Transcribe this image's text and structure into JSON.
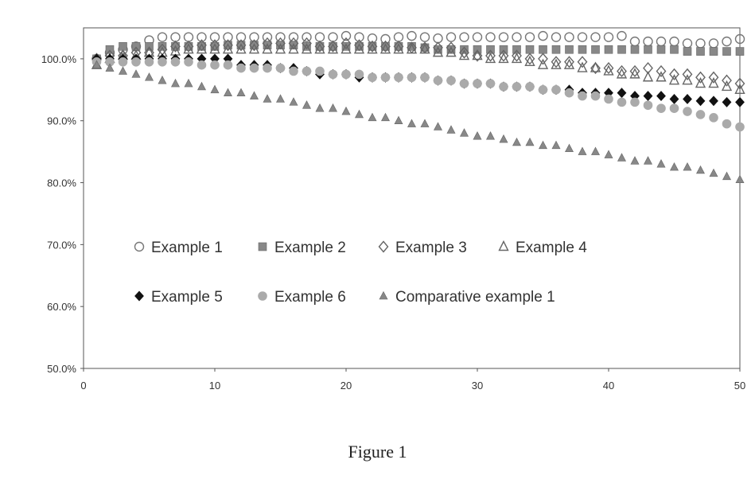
{
  "caption": "Figure 1",
  "chart_data": {
    "type": "scatter",
    "title": "",
    "xlabel": "",
    "ylabel": "",
    "xlim": [
      0,
      50
    ],
    "ylim": [
      0.5,
      1.05
    ],
    "xticks": [
      0,
      10,
      20,
      30,
      40,
      50
    ],
    "xtick_labels": [
      "0",
      "10",
      "20",
      "30",
      "40",
      "50"
    ],
    "yticks": [
      0.5,
      0.6,
      0.7,
      0.8,
      0.9,
      1.0
    ],
    "ytick_labels": [
      "50.0%",
      "60.0%",
      "70.0%",
      "80.0%",
      "90.0%",
      "100.0%"
    ],
    "grid": false,
    "legend_position": "inside-bottom-left",
    "series": [
      {
        "name": "Example 1",
        "marker": "circle-open",
        "color": "#777777",
        "x": [
          1,
          2,
          3,
          4,
          5,
          6,
          7,
          8,
          9,
          10,
          11,
          12,
          13,
          14,
          15,
          16,
          17,
          18,
          19,
          20,
          21,
          22,
          23,
          24,
          25,
          26,
          27,
          28,
          29,
          30,
          31,
          32,
          33,
          34,
          35,
          36,
          37,
          38,
          39,
          40,
          41,
          42,
          43,
          44,
          45,
          46,
          47,
          48,
          49,
          50
        ],
        "y": [
          1.0,
          1.01,
          1.015,
          1.02,
          1.03,
          1.035,
          1.035,
          1.035,
          1.035,
          1.035,
          1.035,
          1.035,
          1.035,
          1.035,
          1.035,
          1.035,
          1.035,
          1.035,
          1.035,
          1.037,
          1.035,
          1.033,
          1.032,
          1.035,
          1.037,
          1.035,
          1.033,
          1.035,
          1.035,
          1.035,
          1.035,
          1.035,
          1.035,
          1.035,
          1.037,
          1.035,
          1.035,
          1.035,
          1.035,
          1.035,
          1.037,
          1.028,
          1.028,
          1.028,
          1.028,
          1.025,
          1.025,
          1.025,
          1.028,
          1.032
        ]
      },
      {
        "name": "Example 2",
        "marker": "square-filled",
        "color": "#888888",
        "x": [
          1,
          2,
          3,
          4,
          5,
          6,
          7,
          8,
          9,
          10,
          11,
          12,
          13,
          14,
          15,
          16,
          17,
          18,
          19,
          20,
          21,
          22,
          23,
          24,
          25,
          26,
          27,
          28,
          29,
          30,
          31,
          32,
          33,
          34,
          35,
          36,
          37,
          38,
          39,
          40,
          41,
          42,
          43,
          44,
          45,
          46,
          47,
          48,
          49,
          50
        ],
        "y": [
          1.0,
          1.015,
          1.02,
          1.02,
          1.02,
          1.02,
          1.02,
          1.02,
          1.02,
          1.02,
          1.022,
          1.022,
          1.022,
          1.022,
          1.022,
          1.022,
          1.02,
          1.02,
          1.02,
          1.02,
          1.02,
          1.02,
          1.02,
          1.02,
          1.02,
          1.018,
          1.015,
          1.015,
          1.015,
          1.015,
          1.015,
          1.015,
          1.015,
          1.015,
          1.015,
          1.015,
          1.015,
          1.015,
          1.015,
          1.015,
          1.015,
          1.015,
          1.015,
          1.015,
          1.015,
          1.012,
          1.012,
          1.012,
          1.012,
          1.012
        ]
      },
      {
        "name": "Example 3",
        "marker": "diamond-open",
        "color": "#666666",
        "x": [
          1,
          2,
          3,
          4,
          5,
          6,
          7,
          8,
          9,
          10,
          11,
          12,
          13,
          14,
          15,
          16,
          17,
          18,
          19,
          20,
          21,
          22,
          23,
          24,
          25,
          26,
          27,
          28,
          29,
          30,
          31,
          32,
          33,
          34,
          35,
          36,
          37,
          38,
          39,
          40,
          41,
          42,
          43,
          44,
          45,
          46,
          47,
          48,
          49,
          50
        ],
        "y": [
          1.0,
          1.005,
          1.005,
          1.01,
          1.01,
          1.015,
          1.02,
          1.02,
          1.022,
          1.022,
          1.022,
          1.022,
          1.022,
          1.025,
          1.025,
          1.025,
          1.025,
          1.02,
          1.02,
          1.025,
          1.022,
          1.02,
          1.02,
          1.02,
          1.018,
          1.018,
          1.018,
          1.018,
          1.01,
          1.005,
          1.005,
          1.005,
          1.005,
          1.0,
          1.0,
          0.995,
          0.995,
          0.995,
          0.985,
          0.985,
          0.98,
          0.98,
          0.985,
          0.98,
          0.975,
          0.975,
          0.97,
          0.97,
          0.965,
          0.96
        ]
      },
      {
        "name": "Example 4",
        "marker": "triangle-open",
        "color": "#666666",
        "x": [
          1,
          2,
          3,
          4,
          5,
          6,
          7,
          8,
          9,
          10,
          11,
          12,
          13,
          14,
          15,
          16,
          17,
          18,
          19,
          20,
          21,
          22,
          23,
          24,
          25,
          26,
          27,
          28,
          29,
          30,
          31,
          32,
          33,
          34,
          35,
          36,
          37,
          38,
          39,
          40,
          41,
          42,
          43,
          44,
          45,
          46,
          47,
          48,
          49,
          50
        ],
        "y": [
          0.99,
          1.0,
          1.005,
          1.005,
          1.01,
          1.01,
          1.012,
          1.015,
          1.015,
          1.015,
          1.015,
          1.015,
          1.015,
          1.015,
          1.015,
          1.015,
          1.015,
          1.015,
          1.015,
          1.015,
          1.015,
          1.015,
          1.015,
          1.015,
          1.015,
          1.015,
          1.01,
          1.01,
          1.005,
          1.005,
          1.0,
          1.0,
          1.0,
          0.995,
          0.99,
          0.99,
          0.99,
          0.985,
          0.985,
          0.98,
          0.975,
          0.975,
          0.97,
          0.97,
          0.965,
          0.965,
          0.96,
          0.96,
          0.955,
          0.95
        ]
      },
      {
        "name": "Example 5",
        "marker": "diamond-filled",
        "color": "#111111",
        "x": [
          1,
          2,
          3,
          4,
          5,
          6,
          7,
          8,
          9,
          10,
          11,
          12,
          13,
          14,
          15,
          16,
          17,
          18,
          19,
          20,
          21,
          22,
          23,
          24,
          25,
          26,
          27,
          28,
          29,
          30,
          31,
          32,
          33,
          34,
          35,
          36,
          37,
          38,
          39,
          40,
          41,
          42,
          43,
          44,
          45,
          46,
          47,
          48,
          49,
          50
        ],
        "y": [
          1.0,
          1.0,
          1.0,
          1.0,
          1.0,
          1.0,
          1.0,
          1.0,
          1.0,
          1.0,
          1.0,
          0.99,
          0.99,
          0.99,
          0.985,
          0.985,
          0.98,
          0.975,
          0.975,
          0.975,
          0.97,
          0.97,
          0.97,
          0.97,
          0.97,
          0.97,
          0.965,
          0.965,
          0.96,
          0.96,
          0.96,
          0.955,
          0.955,
          0.955,
          0.95,
          0.95,
          0.95,
          0.945,
          0.945,
          0.945,
          0.945,
          0.94,
          0.94,
          0.94,
          0.935,
          0.935,
          0.932,
          0.932,
          0.93,
          0.93
        ]
      },
      {
        "name": "Example 6",
        "marker": "circle-filled",
        "color": "#aaaaaa",
        "x": [
          1,
          2,
          3,
          4,
          5,
          6,
          7,
          8,
          9,
          10,
          11,
          12,
          13,
          14,
          15,
          16,
          17,
          18,
          19,
          20,
          21,
          22,
          23,
          24,
          25,
          26,
          27,
          28,
          29,
          30,
          31,
          32,
          33,
          34,
          35,
          36,
          37,
          38,
          39,
          40,
          41,
          42,
          43,
          44,
          45,
          46,
          47,
          48,
          49,
          50
        ],
        "y": [
          0.995,
          0.995,
          0.995,
          0.995,
          0.995,
          0.995,
          0.995,
          0.995,
          0.99,
          0.99,
          0.99,
          0.985,
          0.985,
          0.985,
          0.985,
          0.98,
          0.98,
          0.98,
          0.975,
          0.975,
          0.975,
          0.97,
          0.97,
          0.97,
          0.97,
          0.97,
          0.965,
          0.965,
          0.96,
          0.96,
          0.96,
          0.955,
          0.955,
          0.955,
          0.95,
          0.95,
          0.945,
          0.94,
          0.94,
          0.935,
          0.93,
          0.93,
          0.925,
          0.92,
          0.92,
          0.915,
          0.91,
          0.905,
          0.895,
          0.89
        ]
      },
      {
        "name": "Comparative example 1",
        "marker": "triangle-filled",
        "color": "#888888",
        "x": [
          1,
          2,
          3,
          4,
          5,
          6,
          7,
          8,
          9,
          10,
          11,
          12,
          13,
          14,
          15,
          16,
          17,
          18,
          19,
          20,
          21,
          22,
          23,
          24,
          25,
          26,
          27,
          28,
          29,
          30,
          31,
          32,
          33,
          34,
          35,
          36,
          37,
          38,
          39,
          40,
          41,
          42,
          43,
          44,
          45,
          46,
          47,
          48,
          49,
          50
        ],
        "y": [
          0.99,
          0.985,
          0.98,
          0.975,
          0.97,
          0.965,
          0.96,
          0.96,
          0.955,
          0.95,
          0.945,
          0.945,
          0.94,
          0.935,
          0.935,
          0.93,
          0.925,
          0.92,
          0.92,
          0.915,
          0.91,
          0.905,
          0.905,
          0.9,
          0.895,
          0.895,
          0.89,
          0.885,
          0.88,
          0.875,
          0.875,
          0.87,
          0.865,
          0.865,
          0.86,
          0.86,
          0.855,
          0.85,
          0.85,
          0.845,
          0.84,
          0.835,
          0.835,
          0.83,
          0.825,
          0.825,
          0.82,
          0.815,
          0.81,
          0.805
        ]
      }
    ]
  }
}
